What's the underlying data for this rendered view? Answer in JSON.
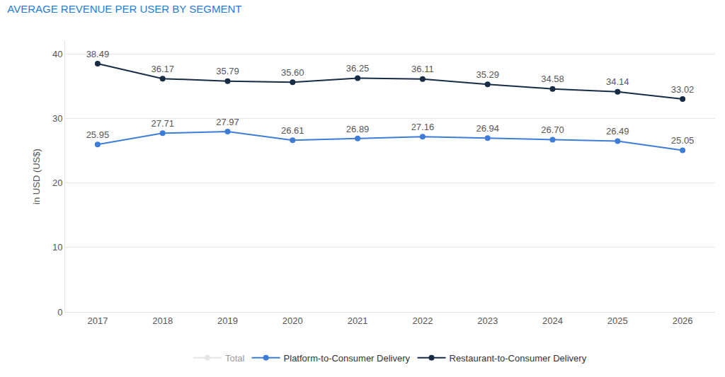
{
  "chart_data": {
    "type": "line",
    "title": "AVERAGE REVENUE PER USER BY SEGMENT",
    "y_label": "in USD (US$)",
    "categories": [
      "2017",
      "2018",
      "2019",
      "2020",
      "2021",
      "2022",
      "2023",
      "2024",
      "2025",
      "2026"
    ],
    "series": [
      {
        "name": "Total",
        "color": "#cccccc",
        "values": [
          null,
          null,
          null,
          null,
          null,
          null,
          null,
          null,
          null,
          null
        ]
      },
      {
        "name": "Platform-to-Consumer Delivery",
        "color": "#3d7dd8",
        "values": [
          25.95,
          27.71,
          27.97,
          26.61,
          26.89,
          27.16,
          26.94,
          26.7,
          26.49,
          25.05
        ],
        "value_labels": [
          "25.95",
          "27.71",
          "27.97",
          "26.61",
          "26.89",
          "27.16",
          "26.94",
          "26.70",
          "26.49",
          "25.05"
        ]
      },
      {
        "name": "Restaurant-to-Consumer Delivery",
        "color": "#172b45",
        "values": [
          38.49,
          36.17,
          35.79,
          35.6,
          36.25,
          36.11,
          35.29,
          34.58,
          34.14,
          33.02
        ],
        "value_labels": [
          "38.49",
          "36.17",
          "35.79",
          "35.60",
          "36.25",
          "36.11",
          "35.29",
          "34.58",
          "34.14",
          "33.02"
        ]
      }
    ],
    "ylim": [
      0,
      42
    ],
    "yticks": [
      0,
      10,
      20,
      30,
      40
    ],
    "grid": true,
    "legend": "bottom",
    "data_labels": true,
    "marker": "circle"
  }
}
